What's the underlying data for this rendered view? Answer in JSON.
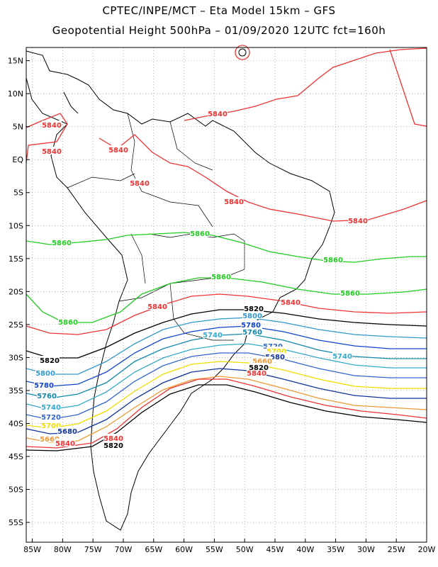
{
  "header": {
    "line1": "CPTEC/INPE/MCT –  Eta Model 15km – GFS",
    "line2": "Geopotential Height 500hPa – 01/09/2020 12UTC fct=160h"
  },
  "axes": {
    "lat_labels": [
      "15N",
      "10N",
      "5N",
      "EQ",
      "5S",
      "10S",
      "15S",
      "20S",
      "25S",
      "30S",
      "35S",
      "40S",
      "45S",
      "50S",
      "55S"
    ],
    "lon_labels": [
      "85W",
      "80W",
      "75W",
      "70W",
      "65W",
      "60W",
      "55W",
      "50W",
      "45W",
      "40W",
      "35W",
      "30W",
      "25W",
      "20W"
    ],
    "lat_range": [
      17,
      -58
    ],
    "lon_range": [
      -86,
      -20
    ],
    "grid": "dotted"
  },
  "contours": [
    {
      "level": "5860",
      "color": "#22cc22"
    },
    {
      "level": "5840",
      "color": "#ee3333"
    },
    {
      "level": "5820",
      "color": "#000000"
    },
    {
      "level": "5800",
      "color": "#3399cc"
    },
    {
      "level": "5780",
      "color": "#1144cc"
    },
    {
      "level": "5760",
      "color": "#1188aa"
    },
    {
      "level": "5740",
      "color": "#33aacc"
    },
    {
      "level": "5720",
      "color": "#3366cc"
    },
    {
      "level": "5700",
      "color": "#eedd00"
    },
    {
      "level": "5680",
      "color": "#113399"
    },
    {
      "level": "5660",
      "color": "#ee9933"
    }
  ]
}
